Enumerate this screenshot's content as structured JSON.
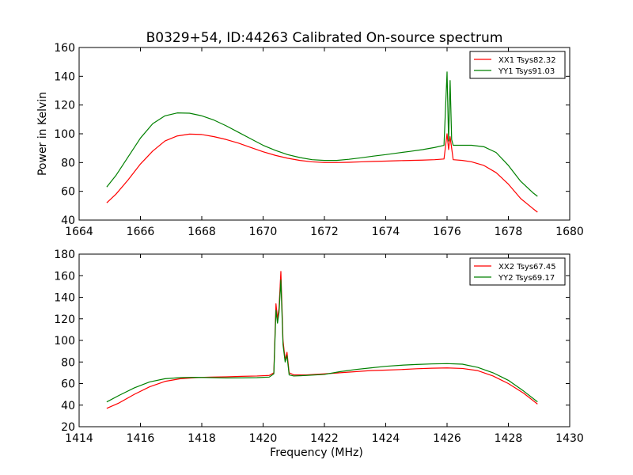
{
  "title": "B0329+54, ID:44263 Calibrated On-source spectrum",
  "chart_data": [
    {
      "type": "line",
      "title": "B0329+54, ID:44263 Calibrated On-source spectrum",
      "xlabel": "",
      "ylabel": "Power in Kelvin",
      "xlim": [
        1664,
        1680
      ],
      "ylim": [
        40,
        160
      ],
      "xticks": [
        1664,
        1666,
        1668,
        1670,
        1672,
        1674,
        1676,
        1678,
        1680
      ],
      "yticks": [
        40,
        60,
        80,
        100,
        120,
        140,
        160
      ],
      "grid": false,
      "legend_position": "top-right",
      "series": [
        {
          "name": "XX1 Tsys82.32",
          "color": "#ff0000",
          "x": [
            1664.9,
            1665.2,
            1665.6,
            1666.0,
            1666.4,
            1666.8,
            1667.2,
            1667.6,
            1668.0,
            1668.4,
            1668.8,
            1669.2,
            1669.6,
            1670.0,
            1670.4,
            1670.8,
            1671.2,
            1671.6,
            1672.0,
            1672.4,
            1672.8,
            1673.2,
            1673.6,
            1674.0,
            1674.4,
            1674.8,
            1675.2,
            1675.6,
            1675.9,
            1676.0,
            1676.05,
            1676.1,
            1676.2,
            1676.5,
            1676.8,
            1677.2,
            1677.6,
            1678.0,
            1678.4,
            1678.8,
            1678.95
          ],
          "y": [
            52,
            58,
            68,
            79,
            88,
            95,
            98.5,
            99.8,
            99.5,
            98,
            96,
            93.5,
            90.5,
            87.5,
            85,
            83,
            81.5,
            80.5,
            80,
            80,
            80.2,
            80.5,
            80.8,
            81,
            81.3,
            81.5,
            81.7,
            82,
            82.5,
            100,
            89,
            98,
            82,
            81.5,
            80.5,
            78,
            73,
            65,
            55,
            48,
            45.5
          ]
        },
        {
          "name": "YY1 Tsys91.03",
          "color": "#008000",
          "x": [
            1664.9,
            1665.2,
            1665.6,
            1666.0,
            1666.4,
            1666.8,
            1667.2,
            1667.6,
            1668.0,
            1668.4,
            1668.8,
            1669.2,
            1669.6,
            1670.0,
            1670.4,
            1670.8,
            1671.2,
            1671.6,
            1672.0,
            1672.4,
            1672.8,
            1673.2,
            1673.6,
            1674.0,
            1674.4,
            1674.8,
            1675.2,
            1675.6,
            1675.9,
            1676.0,
            1676.05,
            1676.1,
            1676.15,
            1676.2,
            1676.5,
            1676.8,
            1677.2,
            1677.6,
            1678.0,
            1678.4,
            1678.8,
            1678.95
          ],
          "y": [
            63,
            71,
            84,
            97,
            107,
            112.5,
            114.5,
            114.3,
            112.5,
            109.5,
            105.5,
            101,
            96.5,
            92,
            88.5,
            85.5,
            83.5,
            82,
            81.5,
            81.5,
            82.3,
            83.3,
            84.5,
            85.5,
            86.7,
            87.8,
            89,
            90.5,
            92,
            143,
            95,
            137,
            96,
            92,
            92,
            92,
            91,
            87,
            78,
            67,
            59,
            56.5
          ]
        }
      ]
    },
    {
      "type": "line",
      "title": "",
      "xlabel": "Frequency (MHz)",
      "ylabel": "",
      "xlim": [
        1414,
        1430
      ],
      "ylim": [
        20,
        180
      ],
      "xticks": [
        1414,
        1416,
        1418,
        1420,
        1422,
        1424,
        1426,
        1428,
        1430
      ],
      "yticks": [
        20,
        40,
        60,
        80,
        100,
        120,
        140,
        160,
        180
      ],
      "grid": false,
      "legend_position": "top-right",
      "series": [
        {
          "name": "XX2 Tsys67.45",
          "color": "#ff0000",
          "x": [
            1414.9,
            1415.3,
            1415.8,
            1416.3,
            1416.8,
            1417.3,
            1417.8,
            1418.3,
            1418.8,
            1419.3,
            1419.8,
            1420.2,
            1420.35,
            1420.42,
            1420.47,
            1420.52,
            1420.58,
            1420.65,
            1420.72,
            1420.78,
            1420.85,
            1421.0,
            1421.4,
            1422.0,
            1422.5,
            1423.0,
            1423.5,
            1424.0,
            1424.5,
            1425.0,
            1425.5,
            1426.0,
            1426.5,
            1427.0,
            1427.5,
            1428.0,
            1428.5,
            1428.95
          ],
          "y": [
            37,
            42,
            50,
            57,
            62,
            64.5,
            65.5,
            66,
            66.3,
            66.7,
            67,
            67.5,
            70,
            134,
            120,
            130,
            164,
            100,
            82,
            89,
            70,
            68,
            68,
            69,
            70,
            71,
            72,
            72.5,
            73,
            73.7,
            74.2,
            74.5,
            74,
            72,
            67,
            60,
            51,
            41
          ]
        },
        {
          "name": "YY2 Tsys69.17",
          "color": "#008000",
          "x": [
            1414.9,
            1415.3,
            1415.8,
            1416.3,
            1416.8,
            1417.3,
            1417.8,
            1418.3,
            1418.8,
            1419.3,
            1419.8,
            1420.2,
            1420.35,
            1420.42,
            1420.47,
            1420.52,
            1420.58,
            1420.65,
            1420.72,
            1420.78,
            1420.85,
            1421.0,
            1421.4,
            1422.0,
            1422.5,
            1423.0,
            1423.5,
            1424.0,
            1424.5,
            1425.0,
            1425.5,
            1426.0,
            1426.5,
            1427.0,
            1427.5,
            1428.0,
            1428.5,
            1428.95
          ],
          "y": [
            43,
            49,
            56,
            61.5,
            64.5,
            65.5,
            65.8,
            65.5,
            65.2,
            65.3,
            65.5,
            66,
            69,
            128,
            116,
            126,
            156,
            96,
            80,
            86,
            68,
            67,
            67.5,
            68.5,
            71,
            73,
            74.5,
            76,
            77,
            77.7,
            78.2,
            78.5,
            78,
            75,
            70,
            63,
            53,
            43
          ]
        }
      ]
    }
  ]
}
